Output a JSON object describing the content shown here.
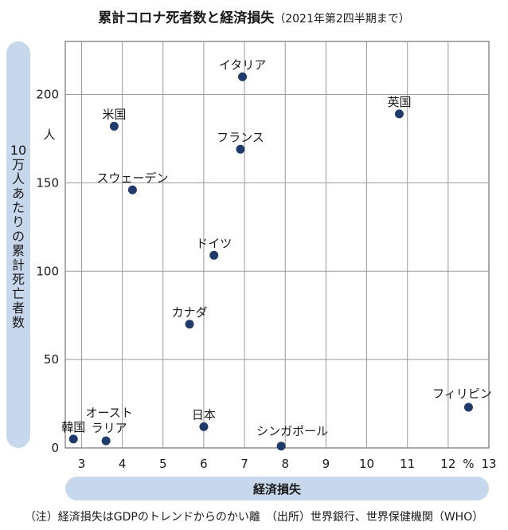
{
  "header": {
    "title": "累計コロナ死者数と経済損失",
    "subtitle": "（2021年第2四半期まで）"
  },
  "footer": {
    "note": "（注）経済損失はGDPのトレンドからのかい離　（出所）世界銀行、世界保健機関（WHO）"
  },
  "chart_data": {
    "type": "scatter",
    "xlabel": "経済損失",
    "ylabel": "10万人あたりの累計死亡者数",
    "x_unit": "%",
    "y_unit": "人",
    "xlim": [
      2.6,
      13
    ],
    "ylim": [
      0,
      230
    ],
    "x_ticks": [
      3,
      4,
      5,
      6,
      7,
      8,
      9,
      10,
      11,
      12,
      13
    ],
    "y_ticks": [
      0,
      50,
      100,
      150,
      200
    ],
    "grid": true,
    "marker_color": "#1f3a6b",
    "points": [
      {
        "label": "イタリア",
        "x": 6.95,
        "y": 210
      },
      {
        "label": "米国",
        "x": 3.8,
        "y": 182
      },
      {
        "label": "英国",
        "x": 10.8,
        "y": 189
      },
      {
        "label": "フランス",
        "x": 6.9,
        "y": 169
      },
      {
        "label": "スウェーデン",
        "x": 4.25,
        "y": 146
      },
      {
        "label": "ドイツ",
        "x": 6.25,
        "y": 109
      },
      {
        "label": "カナダ",
        "x": 5.65,
        "y": 70
      },
      {
        "label": "フィリピン",
        "x": 12.5,
        "y": 23
      },
      {
        "label": "日本",
        "x": 6.0,
        "y": 12
      },
      {
        "label": "韓国",
        "x": 2.8,
        "y": 5
      },
      {
        "label": "オースト\nラリア",
        "x": 3.6,
        "y": 4
      },
      {
        "label": "シンガポール",
        "x": 7.9,
        "y": 1
      }
    ]
  }
}
